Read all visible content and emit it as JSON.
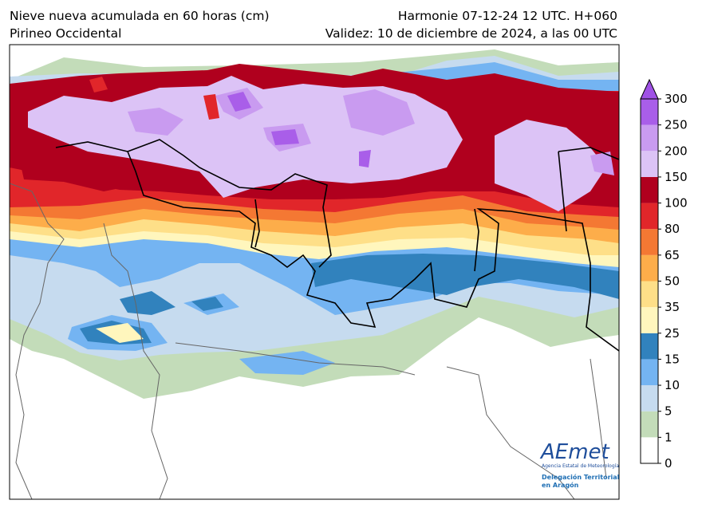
{
  "header": {
    "title_left": "Nieve nueva acumulada en 60 horas (cm)",
    "subtitle_left": "Pirineo Occidental",
    "title_right": "Harmonie 07-12-24 12 UTC. H+060",
    "subtitle_right": "Validez: 10 de diciembre de 2024, a las 00 UTC"
  },
  "colorbar": {
    "levels": [
      0,
      1,
      5,
      10,
      15,
      25,
      35,
      50,
      65,
      80,
      100,
      150,
      200,
      250,
      300
    ],
    "colors": [
      "#ffffff",
      "#c3dcb9",
      "#c6dbef",
      "#74b4f2",
      "#3182bd",
      "#fff6bd",
      "#fedf88",
      "#fdad4a",
      "#f47833",
      "#e1262a",
      "#b0001e",
      "#dcc3f6",
      "#c99bf0",
      "#a95ee9"
    ],
    "extend_color": "#a052e6"
  },
  "logo": {
    "name": "AEmet",
    "agency": "Agencia Estatal de Meteorología",
    "line1": "Delegación Territorial",
    "line2": "en Aragón"
  }
}
